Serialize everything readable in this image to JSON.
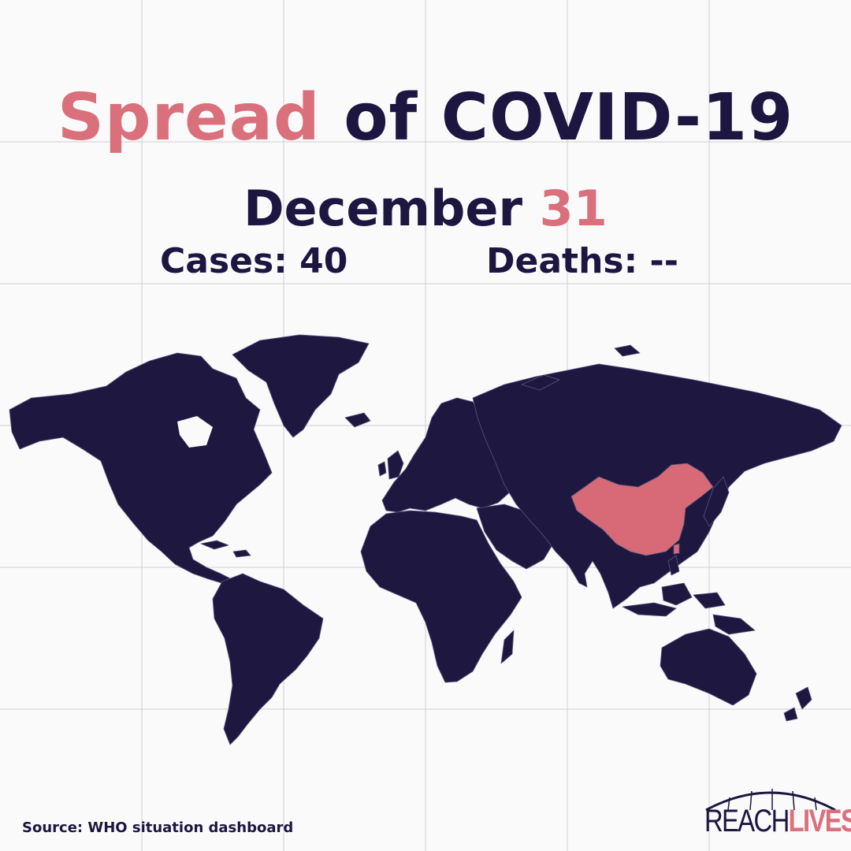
{
  "header": {
    "title_highlight": "Spread",
    "title_rest": "of COVID-19",
    "month": "December",
    "day": "31"
  },
  "stats": {
    "cases_label": "Cases:",
    "cases_value": "40",
    "deaths_label": "Deaths:",
    "deaths_value": "--"
  },
  "map": {
    "highlighted_countries": [
      "China"
    ],
    "land_color": "#1e1840",
    "highlight_color": "#d76a76"
  },
  "footer": {
    "source": "Source: WHO situation dashboard",
    "logo_part1": "REACH",
    "logo_part2": "LIVES"
  }
}
